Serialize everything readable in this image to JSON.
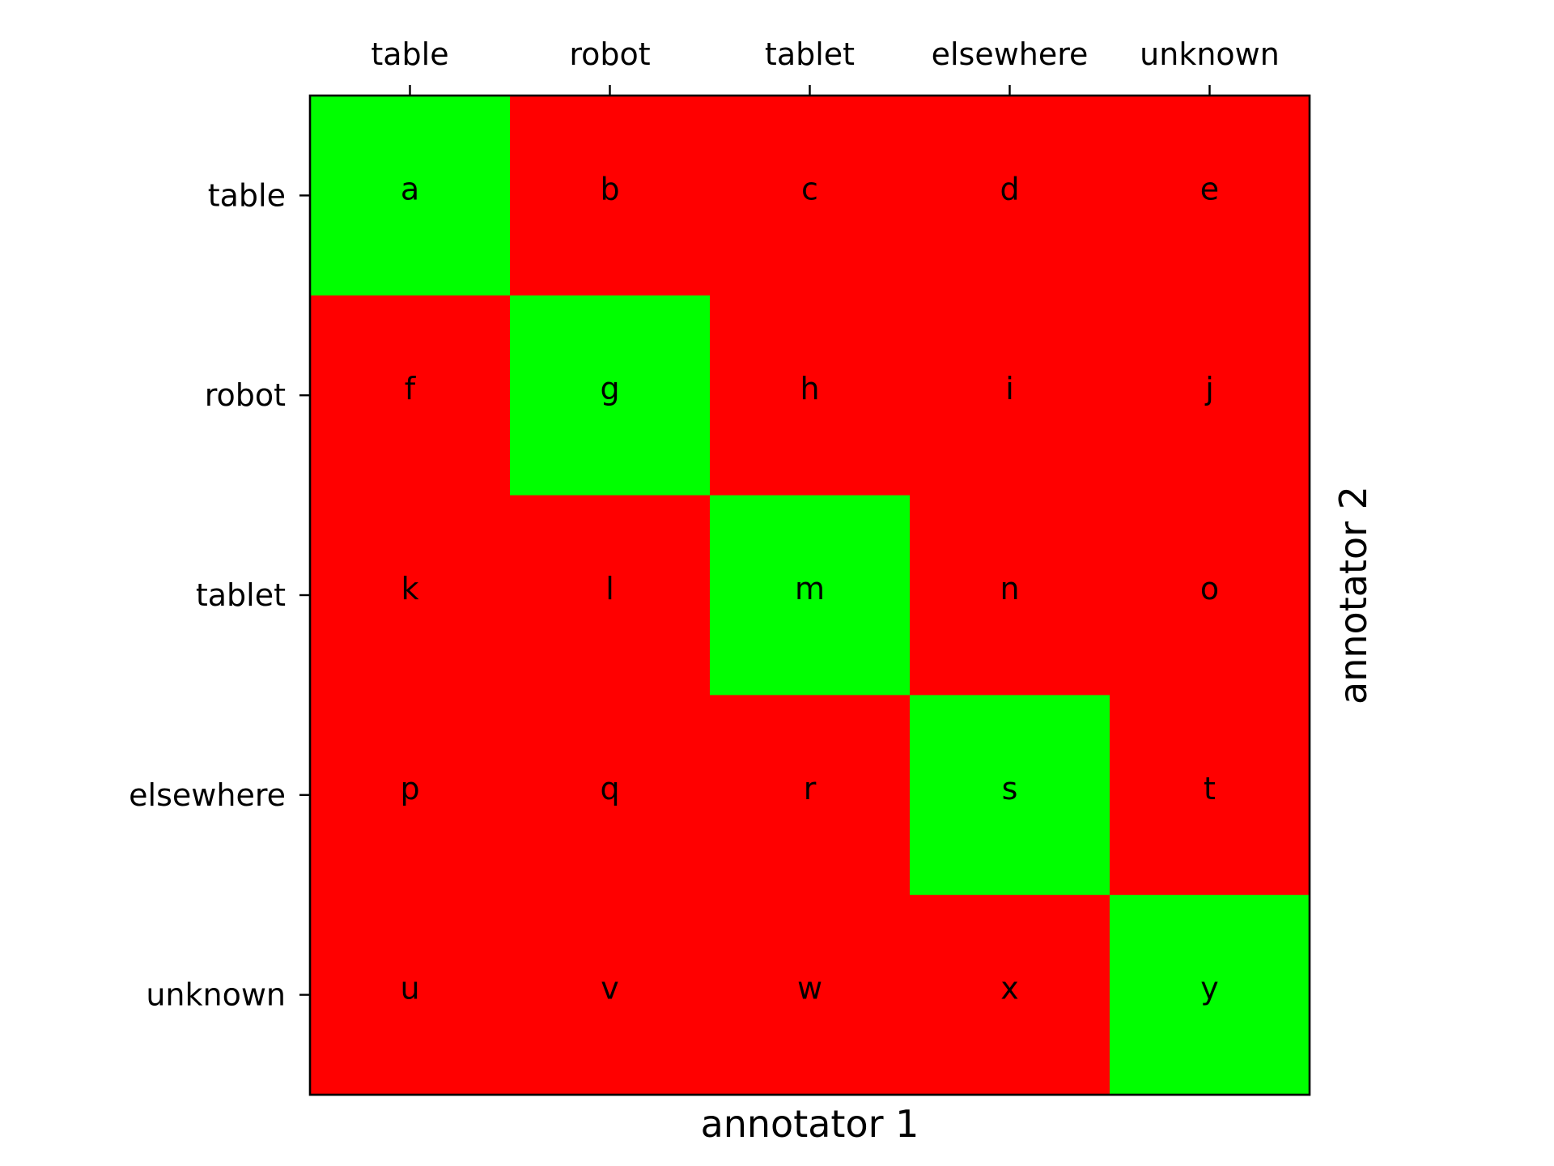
{
  "chart_data": {
    "type": "heatmap",
    "x_categories": [
      "table",
      "robot",
      "tablet",
      "elsewhere",
      "unknown"
    ],
    "y_categories": [
      "table",
      "robot",
      "tablet",
      "elsewhere",
      "unknown"
    ],
    "cells": [
      [
        "a",
        "b",
        "c",
        "d",
        "e"
      ],
      [
        "f",
        "g",
        "h",
        "i",
        "j"
      ],
      [
        "k",
        "l",
        "m",
        "n",
        "o"
      ],
      [
        "p",
        "q",
        "r",
        "s",
        "t"
      ],
      [
        "u",
        "v",
        "w",
        "x",
        "y"
      ]
    ],
    "agreement": [
      [
        1,
        0,
        0,
        0,
        0
      ],
      [
        0,
        1,
        0,
        0,
        0
      ],
      [
        0,
        0,
        1,
        0,
        0
      ],
      [
        0,
        0,
        0,
        1,
        0
      ],
      [
        0,
        0,
        0,
        0,
        1
      ]
    ],
    "xlabel": "annotator 1",
    "ylabel": "annotator 2",
    "x_tick_position": "top",
    "y_label_position": "right",
    "grid": false,
    "colors": {
      "agree": "#00ff00",
      "disagree": "#ff0000",
      "frame": "#000000",
      "text": "#000000"
    }
  }
}
